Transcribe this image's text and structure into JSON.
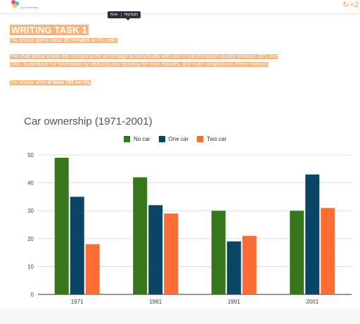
{
  "header": {
    "logo_icon": "brand-logo",
    "logo_sub": "by Examiners",
    "corner_glyph": "↻",
    "corner_text": "+2"
  },
  "toolbar": {
    "note": "Note",
    "highlight": "Highlight"
  },
  "task": {
    "title": "WRITING TASK 1",
    "spend_pre": "You should spend about ",
    "spend_bold": "20 minutes",
    "spend_post": " on this task.",
    "prompt_line1": "The chart below shows the changes in the percentage of households with cars in one European country between 1971 and",
    "prompt_line2": "2001. Summarise the information by selecting and reporting the main features, and make comparisons where relevant.",
    "write_pre": "You should write ",
    "write_bold": "at least 150 words.",
    "highlight_color": "#f7b37a"
  },
  "chart_data": {
    "type": "bar",
    "title": "Car ownership (1971-2001)",
    "categories": [
      "1971",
      "1981",
      "1991",
      "2001"
    ],
    "series": [
      {
        "name": "No car",
        "values": [
          49,
          42,
          30,
          30
        ],
        "color": "#38761d"
      },
      {
        "name": "One car",
        "values": [
          35,
          32,
          19,
          43
        ],
        "color": "#0b4566"
      },
      {
        "name": "Two car",
        "values": [
          18,
          29,
          21,
          31
        ],
        "color": "#ff6d33"
      }
    ],
    "yticks": [
      "0",
      "10",
      "20",
      "30",
      "40",
      "50"
    ],
    "ylim": [
      0,
      50
    ],
    "grid": true,
    "legend_position": "top"
  }
}
